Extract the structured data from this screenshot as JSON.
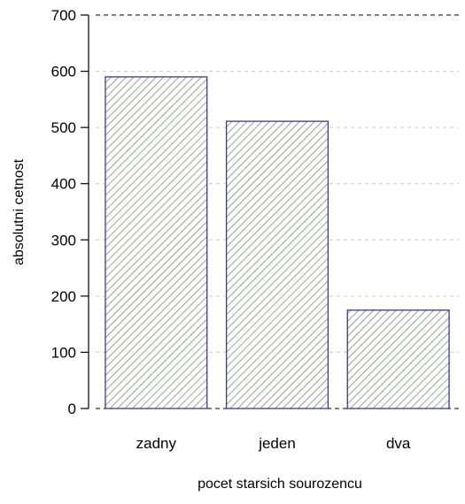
{
  "chart_data": {
    "type": "bar",
    "categories": [
      "zadny",
      "jeden",
      "dva"
    ],
    "values": [
      590,
      511,
      175
    ],
    "xlabel": "pocet starsich sourozencu",
    "ylabel": "absolutni cetnost",
    "ylim": [
      0,
      700
    ],
    "yticks": [
      0,
      100,
      200,
      300,
      400,
      500,
      600,
      700
    ],
    "grid": "horizontal dashed",
    "colors": {
      "bar_outline": "#3b3b8a",
      "bar_hatch": "#6b7a6b",
      "grid": "#cccccc",
      "axis": "#000000"
    }
  }
}
